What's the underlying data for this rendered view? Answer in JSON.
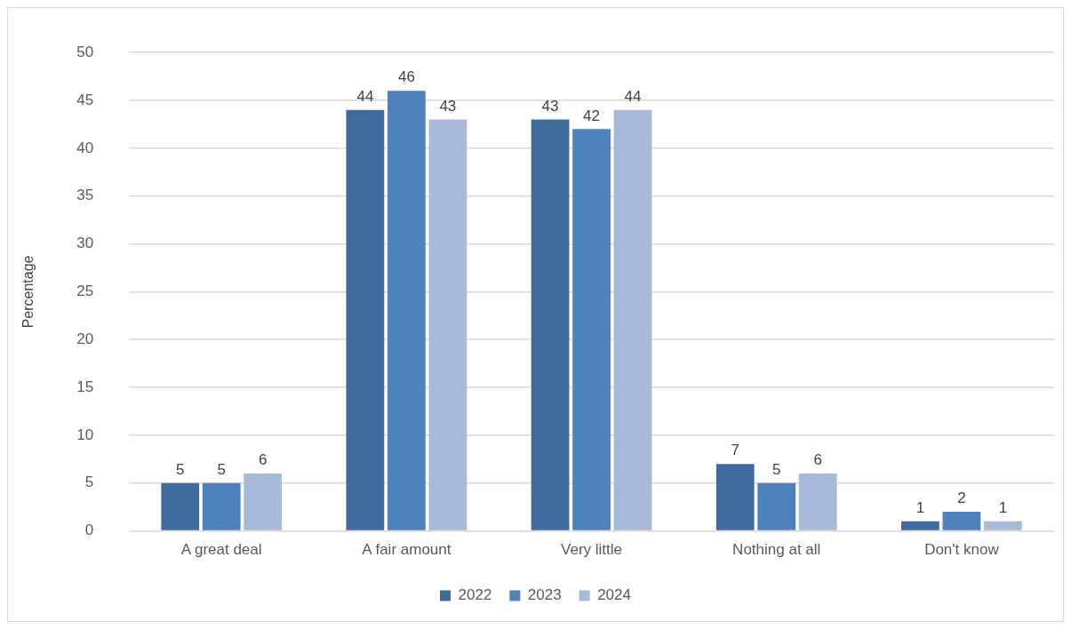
{
  "chart_data": {
    "type": "bar",
    "ylabel": "Percentage",
    "categories": [
      "A great deal",
      "A fair amount",
      "Very little",
      "Nothing at all",
      "Don't know"
    ],
    "series": [
      {
        "name": "2022",
        "color": "#3e6a9c",
        "values": [
          5,
          44,
          43,
          7,
          1
        ]
      },
      {
        "name": "2023",
        "color": "#4f81bd",
        "values": [
          5,
          46,
          42,
          5,
          2
        ]
      },
      {
        "name": "2024",
        "color": "#a9b9d9",
        "values": [
          6,
          43,
          44,
          6,
          1
        ]
      }
    ],
    "ylim": [
      0,
      50
    ],
    "yticks": [
      0,
      5,
      10,
      15,
      20,
      25,
      30,
      35,
      40,
      45,
      50
    ],
    "grid": "y",
    "legend": "bottom",
    "data_labels": true
  }
}
